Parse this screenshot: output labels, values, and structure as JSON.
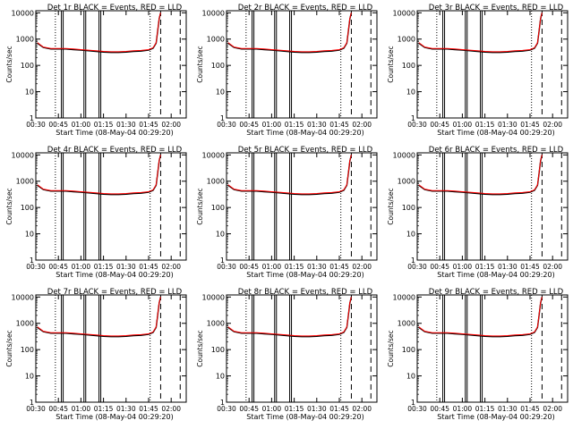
{
  "figure": {
    "panel_titles": [
      "Det 1r BLACK = Events, RED = LLD",
      "Det 2r BLACK = Events, RED = LLD",
      "Det 3r BLACK = Events, RED = LLD",
      "Det 4r BLACK = Events, RED = LLD",
      "Det 5r BLACK = Events, RED = LLD",
      "Det 6r BLACK = Events, RED = LLD",
      "Det 7r BLACK = Events, RED = LLD",
      "Det 8r BLACK = Events, RED = LLD",
      "Det 9r BLACK = Events, RED = LLD"
    ],
    "xlabel": "Start Time (08-May-04 00:29:20)",
    "ylabel": "Counts/sec",
    "colors": {
      "events": "#000000",
      "lld": "#ff0000",
      "background": "#ffffff",
      "axes": "#000000"
    }
  },
  "chart_data": {
    "type": "line",
    "yscale": "log",
    "ylim": [
      1,
      12000
    ],
    "xlim": [
      "00:30",
      "02:10"
    ],
    "x_ticks": [
      "00:30",
      "00:45",
      "01:00",
      "01:15",
      "01:30",
      "01:45",
      "02:00"
    ],
    "y_ticks": [
      "1",
      "10",
      "100",
      "1000",
      "10000"
    ],
    "y_tick_values": [
      1,
      10,
      100,
      1000,
      10000
    ],
    "x": [
      "00:31",
      "00:35",
      "00:40",
      "00:45",
      "00:50",
      "00:55",
      "01:00",
      "01:05",
      "01:10",
      "01:15",
      "01:20",
      "01:25",
      "01:30",
      "01:35",
      "01:40",
      "01:45",
      "01:48",
      "01:50",
      "01:51",
      "01:52",
      "01:53"
    ],
    "series": [
      {
        "name": "BLACK = Events",
        "values": [
          700,
          480,
          420,
          420,
          420,
          400,
          380,
          360,
          340,
          320,
          310,
          310,
          320,
          340,
          350,
          380,
          450,
          700,
          2000,
          6000,
          10000
        ]
      },
      {
        "name": "RED = LLD",
        "values": [
          740,
          500,
          440,
          440,
          440,
          420,
          400,
          380,
          360,
          340,
          330,
          330,
          340,
          360,
          370,
          400,
          470,
          730,
          2100,
          6200,
          10000
        ]
      }
    ],
    "vertical_lines": [
      {
        "style": "dotted",
        "time": "00:43"
      },
      {
        "style": "solid",
        "time": "00:47"
      },
      {
        "style": "solid",
        "time": "01:02"
      },
      {
        "style": "solid",
        "time": "01:12"
      },
      {
        "style": "dotted",
        "time": "01:46"
      },
      {
        "style": "dashed",
        "time": "01:53"
      },
      {
        "style": "dashed",
        "time": "02:06"
      }
    ],
    "panels": 9
  }
}
